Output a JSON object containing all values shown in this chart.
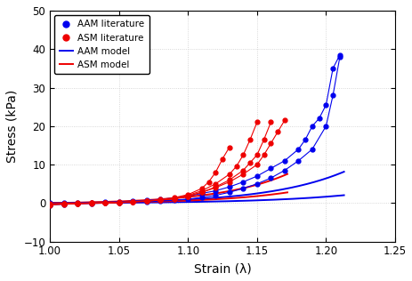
{
  "xlabel": "Strain (λ)",
  "ylabel": "Stress (kPa)",
  "xlim": [
    1.0,
    1.25
  ],
  "ylim": [
    -10,
    50
  ],
  "xticks": [
    1.0,
    1.05,
    1.1,
    1.15,
    1.2,
    1.25
  ],
  "yticks": [
    -10,
    0,
    10,
    20,
    30,
    40,
    50
  ],
  "blue_color": "#0000EE",
  "red_color": "#EE0000",
  "background_color": "#ffffff",
  "grid_color": "#cccccc",
  "aam_lit_curves": [
    {
      "x": [
        1.0,
        1.01,
        1.02,
        1.03,
        1.04,
        1.05,
        1.06,
        1.07,
        1.08,
        1.09,
        1.1,
        1.11,
        1.12,
        1.13,
        1.14,
        1.15,
        1.16,
        1.17,
        1.18,
        1.185,
        1.19,
        1.195,
        1.2,
        1.205,
        1.21
      ],
      "y": [
        0.0,
        0.05,
        0.1,
        0.15,
        0.2,
        0.35,
        0.5,
        0.7,
        1.0,
        1.3,
        1.8,
        2.5,
        3.2,
        4.2,
        5.5,
        7.0,
        9.0,
        11.0,
        14.0,
        16.5,
        20.0,
        22.0,
        25.5,
        35.0,
        38.5
      ]
    },
    {
      "x": [
        1.0,
        1.01,
        1.02,
        1.03,
        1.04,
        1.05,
        1.06,
        1.07,
        1.08,
        1.09,
        1.1,
        1.11,
        1.12,
        1.13,
        1.14,
        1.15,
        1.16,
        1.17,
        1.18,
        1.19,
        1.2,
        1.205,
        1.21
      ],
      "y": [
        -0.5,
        -0.3,
        -0.2,
        -0.1,
        0.0,
        0.1,
        0.2,
        0.3,
        0.5,
        0.7,
        1.0,
        1.5,
        2.0,
        2.8,
        3.8,
        5.0,
        6.5,
        8.5,
        11.0,
        14.0,
        20.0,
        28.0,
        38.0
      ]
    }
  ],
  "asm_lit_curves": [
    {
      "x": [
        1.0,
        1.01,
        1.02,
        1.03,
        1.04,
        1.05,
        1.06,
        1.07,
        1.08,
        1.09,
        1.1,
        1.11,
        1.12,
        1.13,
        1.14,
        1.15,
        1.155,
        1.16,
        1.165,
        1.17
      ],
      "y": [
        -0.3,
        -0.2,
        -0.1,
        0.0,
        0.05,
        0.15,
        0.3,
        0.5,
        0.8,
        1.1,
        1.8,
        2.8,
        4.0,
        5.5,
        7.5,
        10.0,
        12.5,
        15.5,
        18.5,
        21.5
      ]
    },
    {
      "x": [
        1.0,
        1.01,
        1.02,
        1.03,
        1.04,
        1.05,
        1.06,
        1.07,
        1.08,
        1.09,
        1.1,
        1.11,
        1.12,
        1.13,
        1.14,
        1.145,
        1.15,
        1.155,
        1.16
      ],
      "y": [
        -0.3,
        -0.2,
        -0.1,
        0.0,
        0.05,
        0.15,
        0.3,
        0.5,
        0.8,
        1.1,
        1.8,
        2.8,
        4.2,
        6.0,
        8.5,
        10.5,
        12.5,
        16.5,
        21.0
      ]
    },
    {
      "x": [
        1.0,
        1.01,
        1.02,
        1.03,
        1.04,
        1.05,
        1.06,
        1.07,
        1.08,
        1.09,
        1.1,
        1.11,
        1.12,
        1.13,
        1.135,
        1.14,
        1.145,
        1.15
      ],
      "y": [
        -0.2,
        -0.1,
        0.0,
        0.05,
        0.1,
        0.2,
        0.35,
        0.55,
        0.85,
        1.2,
        2.0,
        3.2,
        5.0,
        7.5,
        9.5,
        12.5,
        16.5,
        21.0
      ]
    },
    {
      "x": [
        1.0,
        1.01,
        1.02,
        1.03,
        1.04,
        1.05,
        1.06,
        1.07,
        1.08,
        1.09,
        1.1,
        1.11,
        1.115,
        1.12,
        1.125,
        1.13
      ],
      "y": [
        -0.5,
        -0.3,
        -0.2,
        -0.1,
        0.0,
        0.15,
        0.35,
        0.6,
        0.9,
        1.4,
        2.2,
        3.8,
        5.5,
        8.0,
        11.5,
        14.5
      ]
    }
  ],
  "aam_model_curves": [
    {
      "lam_end": 1.213,
      "a": 0.18,
      "b": 18.0,
      "c": 1.195,
      "d": 55.0
    },
    {
      "lam_end": 1.213,
      "a": 0.07,
      "b": 16.0,
      "c": 1.2,
      "d": 60.0
    }
  ],
  "asm_model_curves": [
    {
      "lam_end": 1.172,
      "a": 0.25,
      "b": 20.0,
      "c": 1.13,
      "d": 45.0
    },
    {
      "lam_end": 1.172,
      "a": 0.12,
      "b": 18.5,
      "c": 1.135,
      "d": 50.0
    }
  ]
}
